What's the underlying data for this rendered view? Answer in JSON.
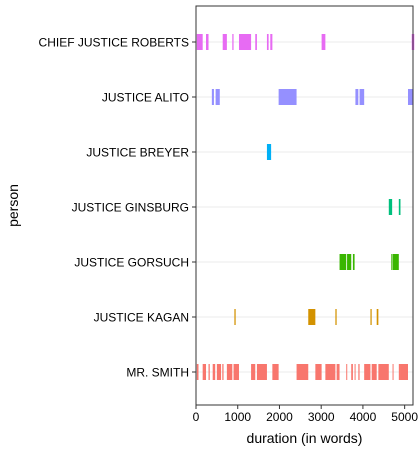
{
  "chart_data": {
    "type": "timeline",
    "xlabel": "duration (in words)",
    "ylabel": "person",
    "xlim": [
      0,
      5200
    ],
    "xticks": [
      0,
      1000,
      2000,
      3000,
      4000,
      5000
    ],
    "x_tick_labels": [
      "0",
      "1000",
      "2000",
      "3000",
      "4000",
      "5000"
    ],
    "grid": "horizontal lines at each category",
    "legend": "none",
    "categories": [
      "CHIEF JUSTICE ROBERTS",
      "JUSTICE ALITO",
      "JUSTICE BREYER",
      "JUSTICE GINSBURG",
      "JUSTICE GORSUCH",
      "JUSTICE KAGAN",
      "MR. SMITH"
    ],
    "series": [
      {
        "category": "CHIEF JUSTICE ROBERTS",
        "color": "#e76bf3",
        "segments": [
          [
            20,
            160
          ],
          [
            240,
            300
          ],
          [
            640,
            740
          ],
          [
            870,
            900
          ],
          [
            1030,
            1320
          ],
          [
            1420,
            1460
          ],
          [
            1700,
            1740
          ],
          [
            1780,
            1830
          ],
          [
            3010,
            3100
          ],
          [
            5170,
            5230
          ]
        ]
      },
      {
        "category": "JUSTICE ALITO",
        "color": "#9590ff",
        "segments": [
          [
            380,
            430
          ],
          [
            470,
            570
          ],
          [
            1980,
            2410
          ],
          [
            3820,
            3890
          ],
          [
            3920,
            4030
          ],
          [
            5080,
            5200
          ]
        ]
      },
      {
        "category": "JUSTICE BREYER",
        "color": "#00b0f6",
        "segments": [
          [
            1700,
            1800
          ]
        ]
      },
      {
        "category": "JUSTICE GINSBURG",
        "color": "#00bf7d",
        "segments": [
          [
            4620,
            4700
          ],
          [
            4860,
            4900
          ]
        ]
      },
      {
        "category": "JUSTICE GORSUCH",
        "color": "#39b600",
        "segments": [
          [
            3440,
            3600
          ],
          [
            3620,
            3720
          ],
          [
            3760,
            3800
          ],
          [
            4680,
            4710
          ],
          [
            4720,
            4860
          ]
        ]
      },
      {
        "category": "JUSTICE KAGAN",
        "color": "#d39200",
        "segments": [
          [
            920,
            950
          ],
          [
            2690,
            2860
          ],
          [
            3340,
            3370
          ],
          [
            4180,
            4210
          ],
          [
            4330,
            4370
          ]
        ]
      },
      {
        "category": "MR. SMITH",
        "color": "#f8766d",
        "segments": [
          [
            20,
            60
          ],
          [
            160,
            240
          ],
          [
            300,
            330
          ],
          [
            400,
            460
          ],
          [
            500,
            600
          ],
          [
            630,
            660
          ],
          [
            740,
            870
          ],
          [
            900,
            1030
          ],
          [
            1320,
            1420
          ],
          [
            1460,
            1700
          ],
          [
            1830,
            1980
          ],
          [
            2410,
            2690
          ],
          [
            2860,
            3010
          ],
          [
            3100,
            3340
          ],
          [
            3370,
            3440
          ],
          [
            3600,
            3620
          ],
          [
            3720,
            3760
          ],
          [
            3800,
            3820
          ],
          [
            3890,
            3920
          ],
          [
            4030,
            4180
          ],
          [
            4210,
            4330
          ],
          [
            4370,
            4620
          ],
          [
            4710,
            4720
          ],
          [
            4860,
            4900
          ],
          [
            4900,
            5080
          ]
        ]
      }
    ]
  }
}
